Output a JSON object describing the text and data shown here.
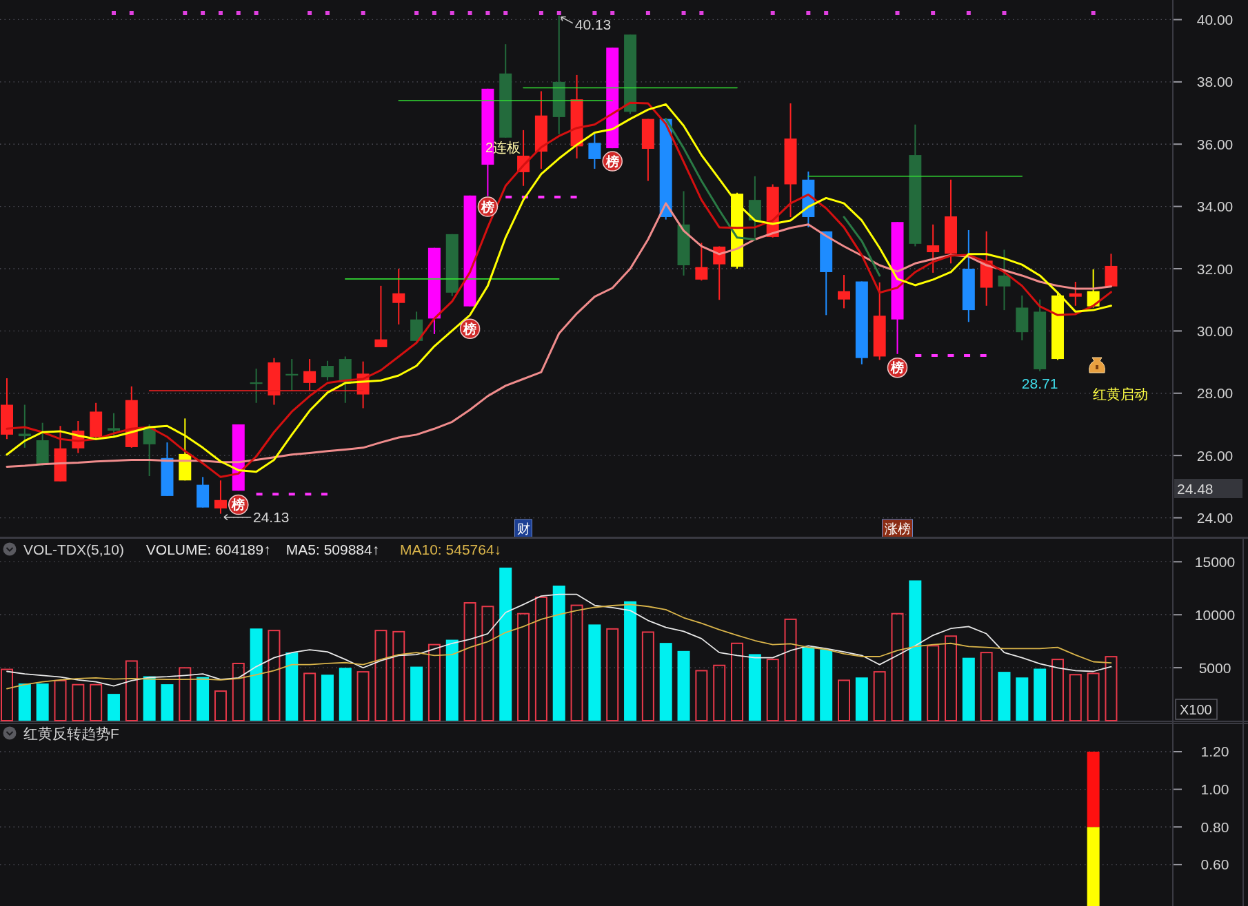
{
  "chart_data": [
    {
      "type": "candlestick",
      "categories": [
        null,
        null,
        null,
        null,
        null,
        null,
        null,
        null,
        null,
        null,
        null,
        null,
        null,
        null,
        null,
        null,
        null,
        null,
        null,
        null,
        null,
        null,
        null,
        null,
        null,
        null,
        null,
        null,
        null,
        null,
        null,
        null,
        null,
        null,
        null,
        null,
        null,
        null,
        null,
        null,
        null,
        null,
        null,
        null,
        null,
        null,
        null,
        null,
        null,
        null,
        null,
        null,
        null,
        null,
        null,
        null,
        null,
        null,
        null,
        null,
        null,
        null,
        null
      ],
      "ohlc": [
        [
          26.67,
          28.48,
          26.53,
          27.63
        ],
        [
          26.7,
          27.63,
          26.25,
          26.62
        ],
        [
          26.49,
          27.05,
          25.68,
          25.7
        ],
        [
          25.17,
          26.95,
          25.17,
          26.23
        ],
        [
          26.23,
          27.11,
          26.08,
          26.8
        ],
        [
          26.6,
          27.69,
          26.56,
          27.41
        ],
        [
          26.88,
          27.36,
          26.6,
          26.8
        ],
        [
          26.27,
          28.22,
          26.25,
          27.78
        ],
        [
          26.91,
          27.0,
          25.34,
          26.36
        ],
        [
          25.92,
          26.42,
          24.7,
          24.7
        ],
        [
          25.2,
          27.19,
          25.2,
          26.05
        ],
        [
          25.06,
          25.31,
          24.33,
          24.33
        ],
        [
          24.3,
          25.2,
          24.13,
          24.57
        ],
        [
          24.87,
          27.0,
          24.87,
          27.0
        ],
        [
          28.35,
          28.79,
          27.69,
          28.3
        ],
        [
          27.93,
          29.13,
          27.63,
          28.99
        ],
        [
          28.62,
          29.1,
          28.08,
          28.57
        ],
        [
          28.33,
          29.1,
          28.08,
          28.71
        ],
        [
          28.88,
          29.04,
          28.41,
          28.52
        ],
        [
          29.1,
          29.18,
          27.69,
          28.35
        ],
        [
          27.96,
          29.02,
          27.52,
          28.63
        ],
        [
          29.48,
          31.45,
          29.48,
          29.73
        ],
        [
          30.9,
          32.0,
          30.21,
          31.21
        ],
        [
          30.37,
          30.62,
          29.62,
          29.68
        ],
        [
          30.4,
          32.67,
          29.9,
          32.67
        ],
        [
          33.11,
          33.11,
          31.12,
          31.23
        ],
        [
          30.79,
          34.35,
          30.79,
          34.35
        ],
        [
          35.34,
          37.78,
          34.33,
          37.78
        ],
        [
          38.27,
          39.21,
          36.21,
          36.21
        ],
        [
          35.1,
          36.45,
          34.66,
          35.63
        ],
        [
          35.76,
          37.7,
          35.21,
          36.92
        ],
        [
          38.0,
          40.13,
          36.32,
          36.87
        ],
        [
          35.93,
          38.22,
          35.54,
          37.44
        ],
        [
          36.04,
          36.34,
          35.21,
          35.52
        ],
        [
          35.87,
          39.1,
          35.87,
          39.1
        ],
        [
          39.52,
          39.52,
          36.97,
          37.04
        ],
        [
          35.85,
          36.81,
          34.82,
          36.81
        ],
        [
          36.81,
          36.81,
          33.58,
          33.66
        ],
        [
          33.42,
          34.49,
          31.78,
          32.11
        ],
        [
          31.65,
          32.83,
          31.62,
          32.05
        ],
        [
          32.14,
          32.72,
          31.0,
          32.71
        ],
        [
          32.06,
          34.44,
          32.0,
          34.41
        ],
        [
          34.21,
          34.97,
          33.0,
          33.55
        ],
        [
          33.02,
          34.71,
          33.0,
          34.63
        ],
        [
          34.71,
          37.31,
          33.66,
          36.18
        ],
        [
          34.86,
          35.12,
          33.33,
          33.66
        ],
        [
          33.2,
          33.2,
          30.51,
          31.89
        ],
        [
          31.01,
          31.8,
          30.73,
          31.28
        ],
        [
          31.59,
          31.59,
          28.93,
          29.13
        ],
        [
          29.18,
          31.56,
          29.07,
          30.49
        ],
        [
          30.37,
          33.5,
          29.26,
          33.5
        ],
        [
          35.65,
          36.63,
          32.72,
          32.8
        ],
        [
          32.53,
          33.42,
          31.87,
          32.75
        ],
        [
          32.48,
          34.86,
          32.17,
          33.68
        ],
        [
          32.0,
          33.24,
          30.29,
          30.67
        ],
        [
          31.39,
          33.2,
          30.81,
          32.26
        ],
        [
          31.78,
          32.61,
          30.67,
          31.43
        ],
        [
          30.75,
          31.14,
          29.7,
          29.96
        ],
        [
          30.62,
          31.01,
          28.71,
          28.77
        ],
        [
          29.1,
          31.25,
          29.07,
          31.14
        ],
        [
          31.1,
          31.58,
          30.81,
          31.21
        ],
        [
          30.79,
          31.98,
          30.75,
          31.28
        ],
        [
          31.43,
          32.48,
          31.43,
          32.09
        ]
      ],
      "colors": [
        "#ff2222",
        "#236b3c",
        "#236b3c",
        "#ff2222",
        "#ff2222",
        "#ff2222",
        "#236b3c",
        "#ff2222",
        "#236b3c",
        "#1e8cff",
        "#ffff00",
        "#1e8cff",
        "#ff2222",
        "#ff00ff",
        "#236b3c",
        "#ff2222",
        "#236b3c",
        "#ff2222",
        "#236b3c",
        "#236b3c",
        "#ff2222",
        "#ff2222",
        "#ff2222",
        "#236b3c",
        "#ff00ff",
        "#236b3c",
        "#ff00ff",
        "#ff00ff",
        "#236b3c",
        "#ff2222",
        "#ff2222",
        "#236b3c",
        "#ff2222",
        "#1e8cff",
        "#ff00ff",
        "#236b3c",
        "#ff2222",
        "#1e8cff",
        "#236b3c",
        "#ff2222",
        "#ff2222",
        "#ffff00",
        "#236b3c",
        "#ff2222",
        "#ff2222",
        "#1e8cff",
        "#1e8cff",
        "#ff2222",
        "#1e8cff",
        "#ff2222",
        "#ff00ff",
        "#236b3c",
        "#ff2222",
        "#ff2222",
        "#1e8cff",
        "#ff2222",
        "#236b3c",
        "#236b3c",
        "#236b3c",
        "#ffff00",
        "#ff2222",
        "#ffff00",
        "#ff2222"
      ],
      "value_labels": [
        null,
        null,
        null,
        null,
        null,
        null,
        null,
        null,
        null,
        null,
        null,
        null,
        "24.13",
        null,
        null,
        null,
        null,
        null,
        null,
        null,
        null,
        null,
        null,
        null,
        null,
        null,
        null,
        null,
        null,
        null,
        null,
        "40.13",
        null,
        null,
        null,
        null,
        null,
        null,
        null,
        null,
        null,
        null,
        null,
        null,
        null,
        null,
        null,
        null,
        null,
        null,
        null,
        null,
        null,
        null,
        null,
        null,
        null,
        null,
        "28.71",
        null,
        null,
        null,
        null
      ],
      "series": [
        {
          "type": "line",
          "color": "#33dd33",
          "values": [
            null,
            null,
            null,
            null,
            null,
            null,
            null,
            null,
            null,
            null,
            null,
            null,
            null,
            null,
            null,
            null,
            null,
            null,
            null,
            31.67,
            31.67,
            31.67,
            31.67,
            31.67,
            31.67,
            31.67,
            31.67,
            31.67,
            31.67,
            31.67,
            31.67,
            31.67,
            null,
            null,
            null,
            null,
            null,
            null,
            null,
            null,
            null,
            null,
            null,
            null,
            null,
            null,
            null,
            null,
            null,
            null,
            null,
            null,
            null,
            null,
            null,
            null,
            null,
            null,
            null,
            null,
            null,
            null,
            null
          ]
        },
        {
          "type": "line",
          "color": "#33dd33",
          "values": [
            null,
            null,
            null,
            null,
            null,
            null,
            null,
            null,
            null,
            null,
            null,
            null,
            null,
            null,
            null,
            null,
            null,
            null,
            null,
            null,
            null,
            null,
            37.4,
            37.4,
            37.4,
            37.4,
            37.4,
            37.4,
            37.4,
            37.4,
            37.4,
            37.4,
            37.4,
            37.4,
            37.4,
            null,
            null,
            null,
            null,
            null,
            null,
            null,
            null,
            null,
            null,
            34.97,
            34.97,
            34.97,
            34.97,
            34.97,
            34.97,
            34.97,
            34.97,
            34.97,
            34.97,
            34.97,
            34.97,
            34.97,
            null,
            null,
            null,
            null,
            null
          ]
        },
        {
          "type": "line",
          "color": "#33dd33",
          "values": [
            null,
            null,
            null,
            null,
            null,
            null,
            null,
            null,
            null,
            null,
            null,
            null,
            null,
            null,
            null,
            null,
            null,
            null,
            null,
            null,
            null,
            null,
            null,
            null,
            null,
            null,
            null,
            null,
            null,
            37.81,
            37.81,
            37.81,
            37.81,
            37.81,
            37.81,
            37.81,
            37.81,
            37.81,
            37.81,
            37.81,
            37.81,
            37.81,
            null,
            null,
            null,
            null,
            null,
            null,
            null,
            null,
            null,
            null,
            null,
            null,
            null,
            null,
            null,
            null,
            null,
            null,
            null,
            null,
            null
          ]
        },
        {
          "type": "line",
          "color": "#e82020",
          "values": [
            null,
            null,
            null,
            null,
            null,
            null,
            null,
            null,
            28.08,
            28.08,
            28.08,
            28.08,
            28.08,
            28.08,
            28.08,
            28.08,
            28.08,
            28.08,
            28.08,
            28.08,
            28.08,
            null,
            null,
            null,
            null,
            null,
            null,
            null,
            null,
            null,
            null,
            null,
            null,
            null,
            null,
            null,
            null,
            null,
            null,
            null,
            null,
            null,
            null,
            null,
            null,
            null,
            null,
            null,
            null,
            null,
            null,
            null,
            null,
            null,
            null,
            null,
            null,
            null,
            null,
            null,
            null,
            null,
            null
          ]
        },
        {
          "type": "line",
          "color": "#ff33ff",
          "line_style": "dashed",
          "values": [
            null,
            null,
            null,
            null,
            null,
            null,
            null,
            null,
            null,
            null,
            null,
            null,
            null,
            null,
            24.76,
            24.76,
            24.76,
            24.76,
            24.76,
            null,
            null,
            null,
            null,
            null,
            null,
            null,
            null,
            null,
            34.3,
            34.3,
            34.3,
            34.3,
            34.3,
            null,
            null,
            null,
            null,
            null,
            null,
            null,
            null,
            null,
            null,
            null,
            null,
            null,
            null,
            null,
            null,
            null,
            null,
            29.21,
            29.21,
            29.21,
            29.21,
            29.21,
            null,
            null,
            null,
            null,
            null,
            null,
            null
          ]
        },
        {
          "type": "line",
          "color": "#f08c8c",
          "values": [
            25.64,
            25.67,
            25.72,
            25.75,
            25.77,
            25.81,
            25.83,
            25.86,
            25.86,
            25.83,
            25.83,
            25.83,
            25.79,
            25.79,
            25.86,
            25.94,
            26.03,
            26.08,
            26.14,
            26.19,
            26.25,
            26.42,
            26.58,
            26.67,
            26.86,
            27.08,
            27.47,
            27.91,
            28.24,
            28.46,
            28.68,
            29.92,
            30.56,
            31.1,
            31.38,
            32.0,
            32.94,
            34.1,
            33.22,
            32.72,
            32.47,
            32.64,
            32.94,
            33.14,
            33.31,
            33.42,
            33.05,
            32.72,
            32.42,
            32.11,
            31.91,
            32.17,
            32.31,
            32.44,
            32.39,
            32.11,
            31.95,
            31.78,
            31.58,
            31.45,
            31.36,
            31.36,
            31.43
          ]
        },
        {
          "type": "line",
          "color": "#2a7a45",
          "values": [
            null,
            null,
            null,
            null,
            null,
            null,
            null,
            null,
            null,
            null,
            null,
            null,
            null,
            null,
            null,
            null,
            null,
            null,
            null,
            null,
            null,
            null,
            null,
            null,
            null,
            null,
            null,
            null,
            null,
            null,
            null,
            null,
            null,
            null,
            null,
            null,
            null,
            36.81,
            35.87,
            34.82,
            33.88,
            33.0,
            32.94,
            null,
            null,
            null,
            null,
            33.66,
            32.89,
            31.78,
            null,
            null,
            null,
            null,
            null,
            null,
            null,
            null,
            null,
            null,
            null,
            null,
            null
          ]
        },
        {
          "type": "line",
          "color": "#d41010",
          "values": [
            26.86,
            26.91,
            26.75,
            26.53,
            26.47,
            26.53,
            26.71,
            26.86,
            26.91,
            26.6,
            26.14,
            25.75,
            25.31,
            25.42,
            25.97,
            26.75,
            27.41,
            27.91,
            28.33,
            28.41,
            28.46,
            28.74,
            29.18,
            29.62,
            30.4,
            30.95,
            31.89,
            33.33,
            34.66,
            35.32,
            35.9,
            36.26,
            36.52,
            36.63,
            36.98,
            37.33,
            37.31,
            36.65,
            35.43,
            34.21,
            33.33,
            33.31,
            33.33,
            33.55,
            34.1,
            34.38,
            33.94,
            33.33,
            32.44,
            31.23,
            31.39,
            31.89,
            32.22,
            32.42,
            32.44,
            32.22,
            31.89,
            31.45,
            30.79,
            30.51,
            30.54,
            30.81,
            31.25
          ]
        },
        {
          "type": "line",
          "color": "#ffff00",
          "values": [
            26.03,
            26.47,
            26.75,
            26.78,
            26.64,
            26.53,
            26.6,
            26.75,
            26.91,
            26.95,
            26.64,
            26.25,
            25.81,
            25.53,
            25.48,
            25.86,
            26.67,
            27.44,
            28.02,
            28.33,
            28.37,
            28.41,
            28.57,
            28.88,
            29.51,
            30.01,
            30.51,
            31.45,
            33.0,
            34.21,
            35.04,
            35.54,
            35.98,
            36.37,
            36.48,
            36.81,
            37.11,
            37.28,
            36.59,
            35.65,
            34.88,
            34.1,
            33.55,
            33.44,
            33.55,
            33.99,
            34.27,
            34.1,
            33.55,
            32.67,
            31.67,
            31.47,
            31.65,
            31.89,
            32.47,
            32.47,
            32.33,
            32.13,
            31.78,
            31.23,
            30.62,
            30.67,
            30.81
          ]
        },
        {
          "type": "scatter",
          "marker": "square",
          "color": "#e040e0",
          "values": [
            null,
            null,
            null,
            null,
            null,
            null,
            40.21,
            40.21,
            null,
            null,
            40.21,
            40.21,
            40.21,
            40.21,
            40.21,
            null,
            null,
            40.21,
            40.21,
            null,
            40.21,
            null,
            null,
            40.21,
            40.21,
            40.21,
            40.21,
            40.21,
            40.21,
            null,
            40.21,
            40.21,
            null,
            40.21,
            40.21,
            null,
            40.21,
            null,
            40.21,
            40.21,
            null,
            null,
            null,
            40.21,
            null,
            40.21,
            40.21,
            null,
            null,
            null,
            40.21,
            null,
            40.21,
            null,
            40.21,
            null,
            40.21,
            null,
            null,
            null,
            null,
            40.21,
            null
          ]
        },
        {
          "type": "scatter",
          "marker": "circle",
          "color": "#d02828",
          "values": [
            null,
            null,
            null,
            null,
            null,
            null,
            null,
            null,
            null,
            null,
            null,
            null,
            null,
            24.42,
            null,
            null,
            null,
            null,
            null,
            null,
            null,
            null,
            null,
            null,
            null,
            null,
            30.07,
            33.99,
            null,
            null,
            null,
            null,
            null,
            null,
            35.45,
            null,
            null,
            null,
            null,
            null,
            null,
            null,
            null,
            null,
            null,
            null,
            null,
            null,
            null,
            null,
            28.82,
            null,
            null,
            null,
            null,
            null,
            null,
            null,
            null,
            null,
            null,
            null,
            null
          ],
          "value_labels": [
            null,
            null,
            null,
            null,
            null,
            null,
            null,
            null,
            null,
            null,
            null,
            null,
            null,
            "榜",
            null,
            null,
            null,
            null,
            null,
            null,
            null,
            null,
            null,
            null,
            null,
            null,
            "榜",
            "榜",
            null,
            null,
            null,
            null,
            null,
            null,
            "榜",
            null,
            null,
            null,
            null,
            null,
            null,
            null,
            null,
            null,
            null,
            null,
            null,
            null,
            null,
            null,
            "榜",
            null,
            null,
            null,
            null,
            null,
            null,
            null,
            null,
            null,
            null,
            null,
            null
          ]
        }
      ],
      "ylim": [
        23.37,
        40.63
      ],
      "yticks": [
        {
          "value": 24,
          "label": "24.00"
        },
        {
          "value": 26,
          "label": "26.00"
        },
        {
          "value": 28,
          "label": "28.00"
        },
        {
          "value": 30,
          "label": "30.00"
        },
        {
          "value": 32,
          "label": "32.00"
        },
        {
          "value": 34,
          "label": "34.00"
        },
        {
          "value": 36,
          "label": "36.00"
        },
        {
          "value": 38,
          "label": "38.00"
        },
        {
          "value": 40,
          "label": "40.00"
        }
      ],
      "grid": "y",
      "tick_labels": "y",
      "annotations": [
        "24.48",
        "2连板",
        "红黄启动",
        "财",
        "涨榜"
      ]
    },
    {
      "type": "bar",
      "title": "VOL-TDX(5,10)",
      "categories": [
        null,
        null,
        null,
        null,
        null,
        null,
        null,
        null,
        null,
        null,
        null,
        null,
        null,
        null,
        null,
        null,
        null,
        null,
        null,
        null,
        null,
        null,
        null,
        null,
        null,
        null,
        null,
        null,
        null,
        null,
        null,
        null,
        null,
        null,
        null,
        null,
        null,
        null,
        null,
        null,
        null,
        null,
        null,
        null,
        null,
        null,
        null,
        null,
        null,
        null,
        null,
        null,
        null,
        null,
        null,
        null,
        null,
        null,
        null,
        null,
        null,
        null,
        null
      ],
      "series": [
        {
          "color": "#00f0f0",
          "values": [
            null,
            3510,
            3510,
            null,
            null,
            null,
            2530,
            null,
            4190,
            3440,
            null,
            4120,
            null,
            null,
            8700,
            null,
            6430,
            null,
            4340,
            4990,
            null,
            null,
            null,
            5100,
            null,
            7640,
            null,
            null,
            14450,
            null,
            null,
            12750,
            null,
            9080,
            null,
            11270,
            null,
            7340,
            6580,
            null,
            null,
            null,
            6280,
            null,
            null,
            6960,
            6730,
            null,
            4080,
            null,
            null,
            13240,
            null,
            null,
            5940,
            null,
            4610,
            4080,
            4910,
            null,
            null,
            null,
            null
          ]
        },
        {
          "color": "#e8394a",
          "line_style": "solid",
          "values": [
            4840,
            null,
            null,
            3780,
            3400,
            3400,
            null,
            5630,
            null,
            null,
            4990,
            null,
            2790,
            5400,
            null,
            8510,
            null,
            4460,
            null,
            null,
            4610,
            8510,
            8400,
            null,
            7180,
            null,
            11120,
            10780,
            null,
            10100,
            11650,
            null,
            10890,
            null,
            8660,
            null,
            8360,
            null,
            null,
            4720,
            5220,
            7300,
            null,
            5780,
            9570,
            null,
            null,
            3810,
            null,
            4610,
            10100,
            null,
            7070,
            7980,
            null,
            6430,
            null,
            null,
            null,
            5780,
            4340,
            4460,
            6040
          ]
        },
        {
          "type": "line",
          "name": "MA5: 509884↑",
          "color": "#e8e8e8",
          "values": [
            4650,
            4420,
            4270,
            4120,
            3850,
            3660,
            3280,
            3780,
            4080,
            4150,
            4270,
            4420,
            3890,
            4040,
            5100,
            5940,
            6430,
            6690,
            6500,
            5780,
            4990,
            5670,
            6160,
            6240,
            6770,
            7300,
            7680,
            8210,
            10210,
            10970,
            11770,
            11920,
            11920,
            10890,
            10670,
            10400,
            9460,
            8810,
            8430,
            7750,
            6430,
            6160,
            5940,
            5940,
            6620,
            7070,
            6810,
            6500,
            6160,
            5290,
            6160,
            7070,
            8060,
            8700,
            8890,
            8210,
            6430,
            5940,
            5370,
            4990,
            4720,
            4650,
            5100
          ]
        },
        {
          "type": "line",
          "name": "MA10: 545764↓",
          "color": "#d9b44a",
          "values": [
            3020,
            3400,
            3660,
            3850,
            3970,
            4040,
            3930,
            3970,
            3930,
            3890,
            3890,
            3930,
            3850,
            3970,
            4340,
            4720,
            5290,
            5290,
            5400,
            5480,
            5290,
            5780,
            6240,
            6430,
            6160,
            6240,
            6920,
            7450,
            8320,
            8890,
            9570,
            10020,
            10400,
            10700,
            10860,
            10970,
            10780,
            10480,
            9720,
            9190,
            8590,
            8060,
            7560,
            7180,
            7260,
            6920,
            6730,
            6310,
            6050,
            6050,
            6620,
            7000,
            7180,
            7300,
            7000,
            6920,
            6810,
            6810,
            6810,
            6920,
            6200,
            5560,
            5460
          ]
        }
      ],
      "annotations": [
        "VOLUME: 604189↑"
      ],
      "ylim": [
        0,
        17300
      ],
      "yticks": [
        5000,
        10000,
        15000
      ],
      "grid": "y",
      "tick_labels": "y",
      "ylabel": "X100"
    },
    {
      "type": "bar",
      "title": "红黄反转趋势F",
      "stacked": true,
      "categories": [
        null,
        null,
        null,
        null,
        null,
        null,
        null,
        null,
        null,
        null,
        null,
        null,
        null,
        null,
        null,
        null,
        null,
        null,
        null,
        null,
        null,
        null,
        null,
        null,
        null,
        null,
        null,
        null,
        null,
        null,
        null,
        null,
        null,
        null,
        null,
        null,
        null,
        null,
        null,
        null,
        null,
        null,
        null,
        null,
        null,
        null,
        null,
        null,
        null,
        null,
        null,
        null,
        null,
        null,
        null,
        null,
        null,
        null,
        null,
        null,
        null,
        null,
        null
      ],
      "series": [
        {
          "color": "#ffff00",
          "values": [
            null,
            null,
            null,
            null,
            null,
            null,
            null,
            null,
            null,
            null,
            null,
            null,
            null,
            null,
            null,
            null,
            null,
            null,
            null,
            null,
            null,
            null,
            null,
            null,
            null,
            null,
            null,
            null,
            null,
            null,
            null,
            null,
            null,
            null,
            null,
            null,
            null,
            null,
            null,
            null,
            null,
            null,
            null,
            null,
            null,
            null,
            null,
            null,
            null,
            null,
            null,
            null,
            null,
            null,
            null,
            null,
            null,
            null,
            null,
            null,
            null,
            0.8,
            null
          ]
        },
        {
          "color": "#ff1010",
          "values": [
            null,
            null,
            null,
            null,
            null,
            null,
            null,
            null,
            null,
            null,
            null,
            null,
            null,
            null,
            null,
            null,
            null,
            null,
            null,
            null,
            null,
            null,
            null,
            null,
            null,
            null,
            null,
            null,
            null,
            null,
            null,
            null,
            null,
            null,
            null,
            null,
            null,
            null,
            null,
            null,
            null,
            null,
            null,
            null,
            null,
            null,
            null,
            null,
            null,
            null,
            null,
            null,
            null,
            null,
            null,
            null,
            null,
            null,
            null,
            null,
            null,
            0.4,
            null
          ]
        }
      ],
      "ylim": [
        0.38,
        1.35
      ],
      "yticks": [
        {
          "value": 0.6,
          "label": "0.60"
        },
        {
          "value": 0.8,
          "label": "0.80"
        },
        {
          "value": 1.0,
          "label": "1.00"
        },
        {
          "value": 1.2,
          "label": "1.20"
        }
      ],
      "grid": "y",
      "tick_labels": "y"
    }
  ]
}
